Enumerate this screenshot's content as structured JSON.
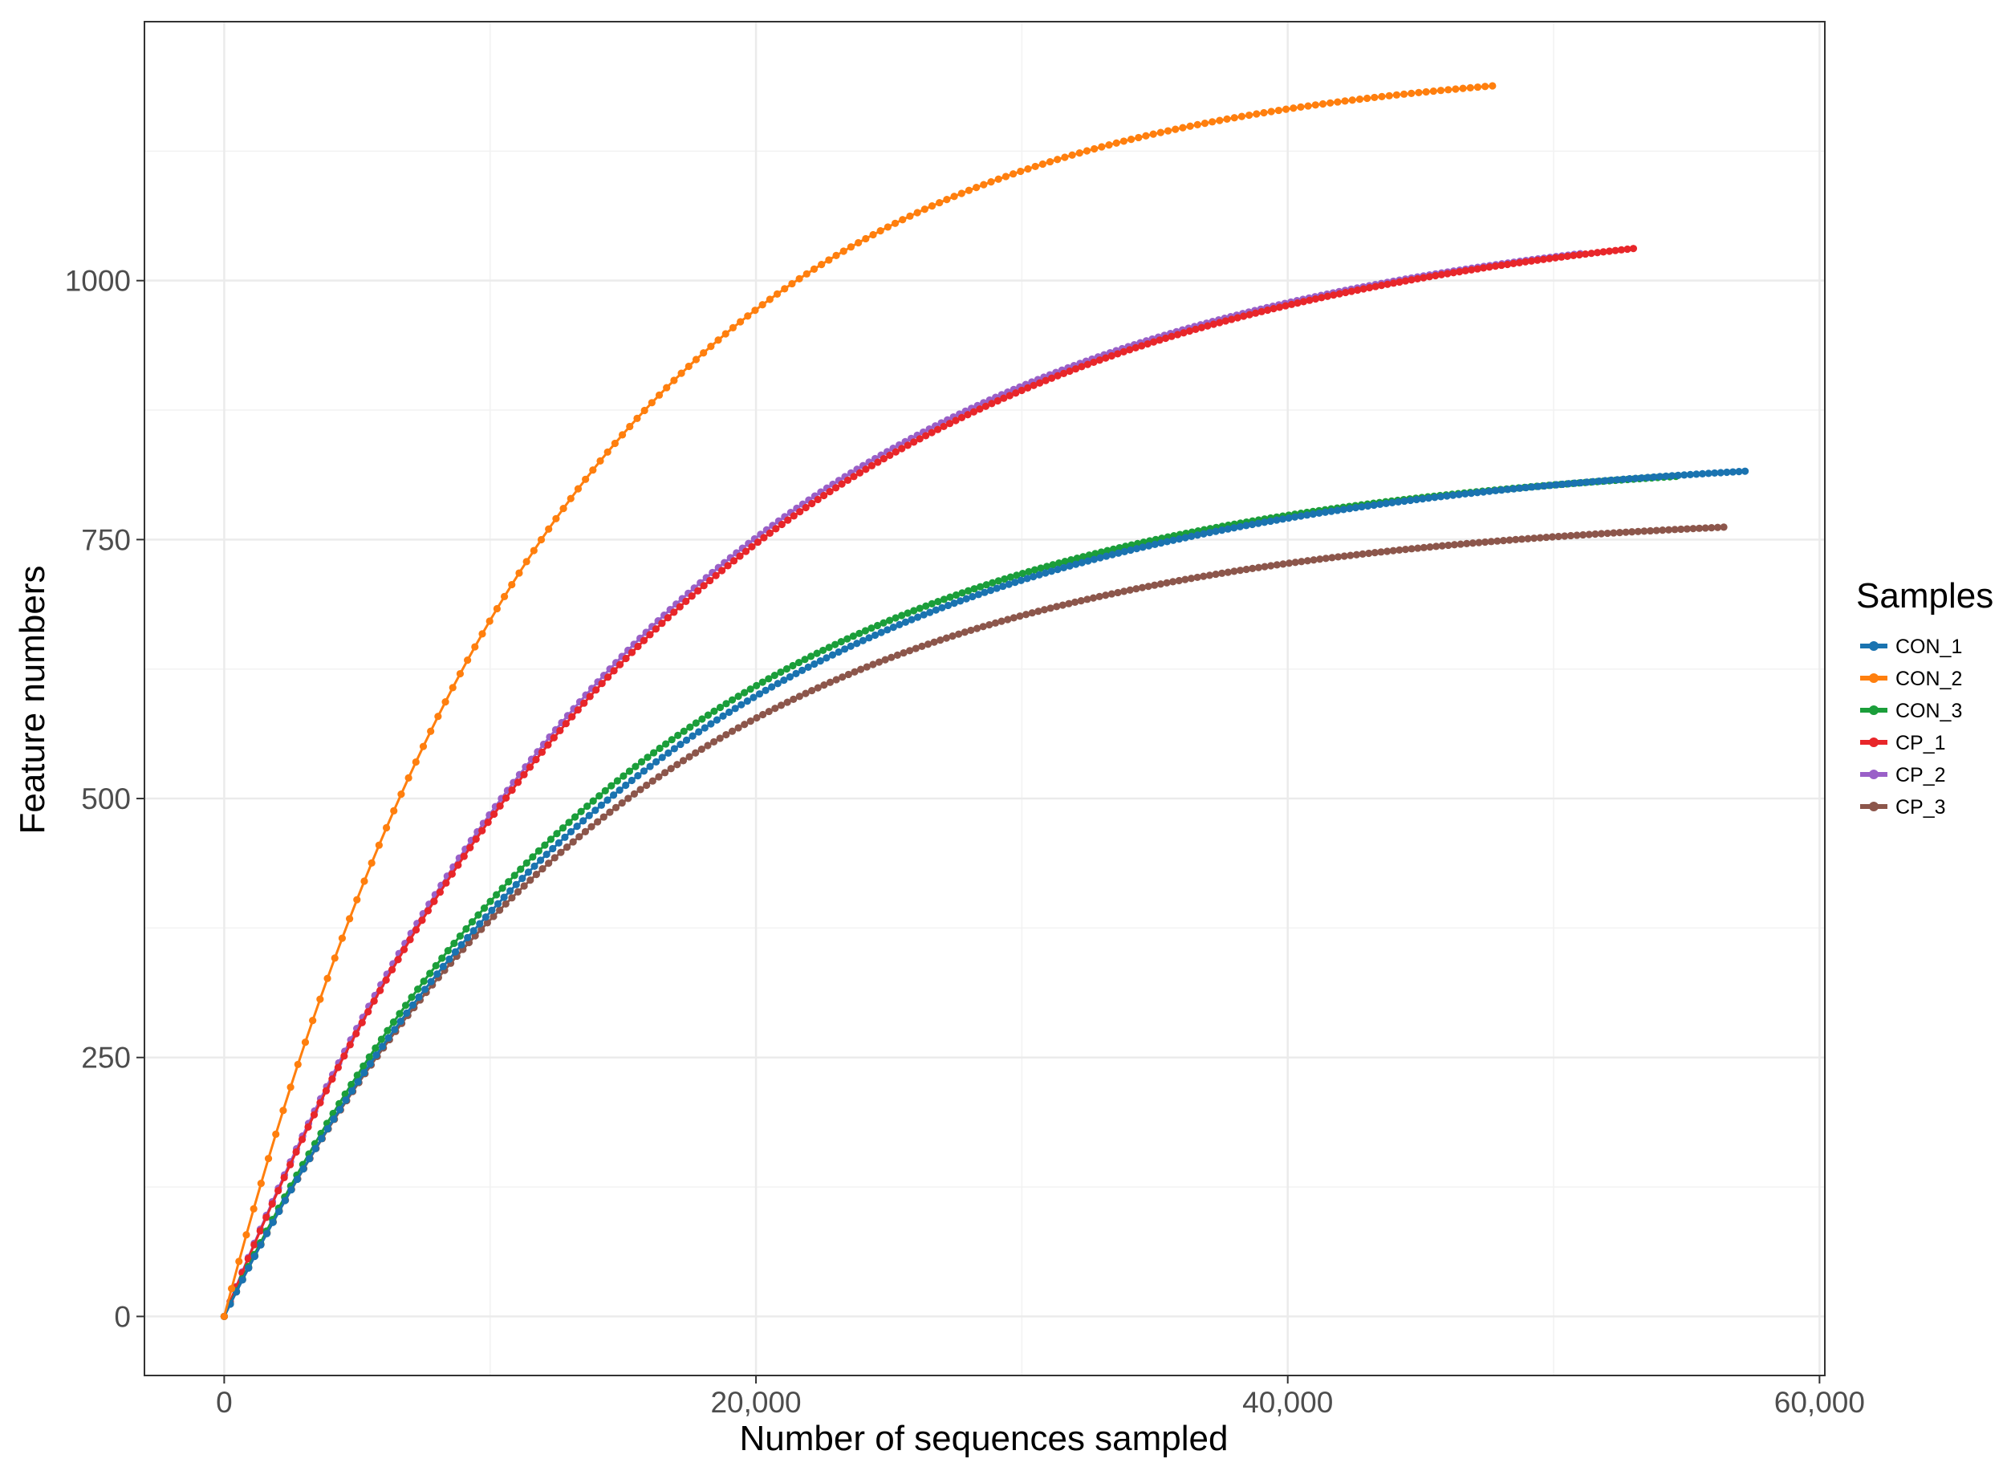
{
  "chart_data": {
    "type": "line",
    "title": "",
    "xlabel": "Number of sequences sampled",
    "ylabel": "Feature numbers",
    "xlim": [
      -3000,
      60200
    ],
    "ylim": [
      -57,
      1250
    ],
    "x_ticks": [
      0,
      20000,
      40000,
      60000
    ],
    "x_tick_labels": [
      "0",
      "20,000",
      "40,000",
      "60,000"
    ],
    "y_ticks": [
      0,
      250,
      500,
      750,
      1000
    ],
    "y_tick_labels": [
      "0",
      "250",
      "500",
      "750",
      "1000"
    ],
    "grid": true,
    "legend": {
      "title": "Samples",
      "placement": "right"
    },
    "series": [
      {
        "name": "CON_1",
        "color": "#1a73b0",
        "x_end": 57200,
        "y_end": 816,
        "K": 16000,
        "n": 250
      },
      {
        "name": "CON_2",
        "color": "#ff7f0e",
        "x_end": 47700,
        "y_end": 1188,
        "K": 12400,
        "n": 172
      },
      {
        "name": "CON_3",
        "color": "#1b9e3a",
        "x_end": 54600,
        "y_end": 811,
        "K": 15300,
        "n": 240
      },
      {
        "name": "CP_1",
        "color": "#e8262a",
        "x_end": 53000,
        "y_end": 1031,
        "K": 17000,
        "n": 235
      },
      {
        "name": "CP_2",
        "color": "#9a60c8",
        "x_end": 51000,
        "y_end": 1026,
        "K": 16700,
        "n": 225
      },
      {
        "name": "CP_3",
        "color": "#8c564b",
        "x_end": 56400,
        "y_end": 762,
        "K": 14800,
        "n": 245
      }
    ]
  }
}
